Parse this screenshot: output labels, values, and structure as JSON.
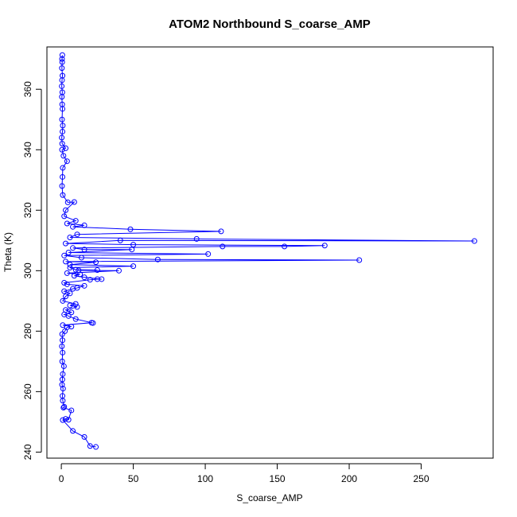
{
  "chart_data": {
    "type": "scatter",
    "title": "ATOM2 Northbound S_coarse_AMP",
    "xlabel": "S_coarse_AMP",
    "ylabel": "Theta (K)",
    "xlim": [
      -10,
      300
    ],
    "ylim": [
      238,
      374
    ],
    "x_ticks": [
      0,
      50,
      100,
      150,
      200,
      250
    ],
    "y_ticks": [
      240,
      260,
      280,
      300,
      320,
      340,
      360
    ],
    "grid": false,
    "legend": "none",
    "color": "#0000ff",
    "series": [
      {
        "style": "points-and-lines",
        "points": [
          [
            24,
            241.7
          ],
          [
            20,
            242.0
          ],
          [
            16,
            245.0
          ],
          [
            8,
            247.0
          ],
          [
            1,
            250.6
          ],
          [
            3,
            251.0
          ],
          [
            5,
            250.7
          ],
          [
            7,
            253.8
          ],
          [
            1.5,
            254.7
          ],
          [
            2,
            255.0
          ],
          [
            1,
            257.0
          ],
          [
            0.8,
            258.6
          ],
          [
            1.2,
            261.0
          ],
          [
            0.5,
            262.3
          ],
          [
            0.7,
            264.0
          ],
          [
            1.0,
            265.8
          ],
          [
            1.8,
            268.4
          ],
          [
            0.6,
            270.0
          ],
          [
            0.9,
            272.9
          ],
          [
            0.4,
            275.0
          ],
          [
            0.8,
            277.0
          ],
          [
            0.6,
            279.0
          ],
          [
            2.5,
            280.0
          ],
          [
            4.0,
            281.3
          ],
          [
            7.0,
            281.5
          ],
          [
            1.0,
            282.0
          ],
          [
            21.0,
            282.8
          ],
          [
            22.0,
            282.7
          ],
          [
            10.0,
            284.0
          ],
          [
            5.0,
            285.0
          ],
          [
            2.0,
            285.5
          ],
          [
            7.0,
            286.2
          ],
          [
            3.0,
            287.0
          ],
          [
            11.0,
            288.0
          ],
          [
            6.0,
            288.5
          ],
          [
            10.0,
            289.0
          ],
          [
            1.0,
            290.0
          ],
          [
            3.0,
            291.5
          ],
          [
            6.0,
            292.5
          ],
          [
            2.0,
            293.2
          ],
          [
            8.0,
            294.0
          ],
          [
            11.0,
            294.3
          ],
          [
            16.0,
            295.0
          ],
          [
            4.0,
            295.5
          ],
          [
            2.0,
            296.0
          ],
          [
            20.0,
            297.0
          ],
          [
            25.0,
            297.2
          ],
          [
            28.0,
            297.2
          ],
          [
            16.0,
            297.8
          ],
          [
            9.0,
            298.3
          ],
          [
            13.0,
            298.8
          ],
          [
            4.0,
            299.2
          ],
          [
            40.0,
            300.0
          ],
          [
            12.0,
            300.1
          ],
          [
            25.0,
            300.2
          ],
          [
            10.0,
            300.3
          ],
          [
            6.0,
            301.0
          ],
          [
            50.0,
            301.5
          ],
          [
            6.0,
            302.0
          ],
          [
            24.0,
            302.8
          ],
          [
            3.0,
            303.0
          ],
          [
            207.0,
            303.5
          ],
          [
            67.0,
            303.7
          ],
          [
            14.0,
            304.3
          ],
          [
            2.0,
            305.0
          ],
          [
            102.0,
            305.5
          ],
          [
            5.0,
            306.0
          ],
          [
            49.0,
            307.0
          ],
          [
            16.0,
            307.0
          ],
          [
            8.0,
            307.5
          ],
          [
            112.0,
            308.0
          ],
          [
            155.0,
            308.0
          ],
          [
            183.0,
            308.3
          ],
          [
            50.0,
            308.6
          ],
          [
            3.0,
            309.0
          ],
          [
            41.0,
            310.0
          ],
          [
            287.0,
            309.8
          ],
          [
            94.0,
            310.5
          ],
          [
            6.0,
            311.0
          ],
          [
            11.0,
            312.0
          ],
          [
            111.0,
            313.0
          ],
          [
            48.0,
            313.7
          ],
          [
            8.0,
            314.5
          ],
          [
            16.0,
            315.0
          ],
          [
            4.0,
            315.6
          ],
          [
            10.0,
            316.5
          ],
          [
            2.0,
            318.0
          ],
          [
            3.0,
            320.0
          ],
          [
            9.0,
            322.7
          ],
          [
            4.5,
            322.6
          ],
          [
            1.0,
            325.0
          ],
          [
            0.5,
            328.0
          ],
          [
            0.8,
            331.0
          ],
          [
            1.0,
            334.0
          ],
          [
            4.0,
            336.2
          ],
          [
            1.5,
            338.0
          ],
          [
            0.5,
            340.0
          ],
          [
            3.0,
            340.5
          ],
          [
            0.6,
            342.0
          ],
          [
            0.3,
            344.0
          ],
          [
            0.8,
            346.0
          ],
          [
            1.0,
            348.0
          ],
          [
            0.5,
            350.0
          ],
          [
            0.8,
            353.5
          ],
          [
            0.6,
            355.0
          ],
          [
            0.4,
            357.5
          ],
          [
            0.7,
            359.0
          ],
          [
            0.3,
            361.0
          ],
          [
            0.5,
            363.0
          ],
          [
            0.8,
            364.5
          ],
          [
            0.4,
            367.0
          ],
          [
            0.6,
            369.0
          ],
          [
            0.5,
            370.0
          ],
          [
            0.7,
            371.3
          ]
        ]
      }
    ]
  }
}
